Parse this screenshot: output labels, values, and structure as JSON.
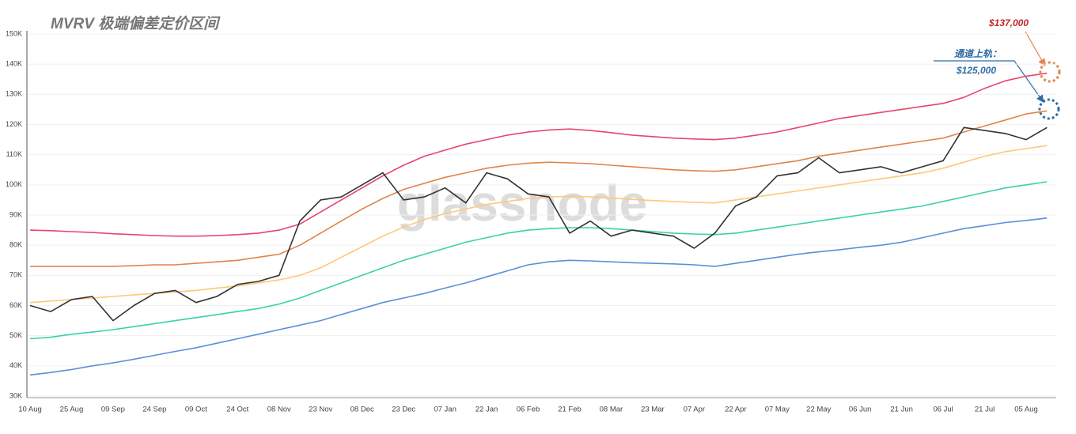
{
  "chart_data": {
    "type": "line",
    "title": "MVRV 极端偏差定价区间",
    "watermark": "glassnode",
    "annotations": [
      {
        "text": "$137,000",
        "color": "#c0272d"
      },
      {
        "text": "通道上轨：",
        "color": "#2f6da3"
      },
      {
        "text": "$125,000",
        "color": "#2f6da3"
      }
    ],
    "categories": [
      "10 Aug",
      null,
      "25 Aug",
      null,
      "09 Sep",
      null,
      "24 Sep",
      null,
      "09 Oct",
      null,
      "24 Oct",
      null,
      "08 Nov",
      null,
      "23 Nov",
      null,
      "08 Dec",
      null,
      "23 Dec",
      null,
      "07 Jan",
      null,
      "22 Jan",
      null,
      "06 Feb",
      null,
      "21 Feb",
      null,
      "08 Mar",
      null,
      "23 Mar",
      null,
      "07 Apr",
      null,
      "22 Apr",
      null,
      "07 May",
      null,
      "22 May",
      null,
      "06 Jun",
      null,
      "21 Jun",
      null,
      "06 Jul",
      null,
      "21 Jul",
      null,
      "05 Aug",
      null
    ],
    "ylim": [
      30000,
      150000
    ],
    "yticks": [
      {
        "value": 30000,
        "label": "30K"
      },
      {
        "value": 40000,
        "label": "40K"
      },
      {
        "value": 50000,
        "label": "50K"
      },
      {
        "value": 60000,
        "label": "60K"
      },
      {
        "value": 70000,
        "label": "70K"
      },
      {
        "value": 80000,
        "label": "80K"
      },
      {
        "value": 90000,
        "label": "90K"
      },
      {
        "value": 100000,
        "label": "100K"
      },
      {
        "value": 110000,
        "label": "110K"
      },
      {
        "value": 120000,
        "label": "120K"
      },
      {
        "value": 130000,
        "label": "130K"
      },
      {
        "value": 140000,
        "label": "140K"
      },
      {
        "value": 150000,
        "label": "150K"
      }
    ],
    "grid": true,
    "series": [
      {
        "color": "#e8456b",
        "values": [
          85000,
          84800,
          84500,
          84200,
          83800,
          83500,
          83200,
          83000,
          83000,
          83200,
          83500,
          84000,
          85000,
          87000,
          91000,
          95000,
          99000,
          103000,
          106500,
          109500,
          111500,
          113500,
          115000,
          116500,
          117500,
          118200,
          118500,
          118000,
          117300,
          116500,
          116000,
          115500,
          115200,
          115000,
          115500,
          116500,
          117500,
          119000,
          120500,
          122000,
          123000,
          124000,
          125000,
          126000,
          127000,
          129000,
          132000,
          134500,
          136000,
          137000
        ]
      },
      {
        "color": "#e0844a",
        "values": [
          73000,
          73000,
          73000,
          73000,
          73000,
          73200,
          73500,
          73500,
          74000,
          74500,
          75000,
          76000,
          77000,
          80000,
          84000,
          88000,
          92000,
          95500,
          98500,
          100500,
          102500,
          104000,
          105500,
          106500,
          107200,
          107500,
          107300,
          107000,
          106500,
          106000,
          105500,
          105000,
          104700,
          104500,
          105000,
          106000,
          107000,
          108000,
          109500,
          110500,
          111500,
          112500,
          113500,
          114500,
          115500,
          117500,
          119500,
          121500,
          123500,
          124500
        ]
      },
      {
        "color": "#fcc97a",
        "values": [
          61000,
          61500,
          62000,
          62500,
          63000,
          63500,
          64000,
          64500,
          65000,
          65800,
          66500,
          67500,
          68500,
          70000,
          72500,
          76000,
          79500,
          83000,
          86000,
          88500,
          90500,
          92000,
          93500,
          94500,
          95500,
          96000,
          96200,
          96000,
          95600,
          95200,
          94800,
          94500,
          94200,
          94000,
          95000,
          96000,
          97000,
          98000,
          99000,
          100000,
          101000,
          102000,
          103000,
          104000,
          105500,
          107500,
          109500,
          111000,
          112000,
          113000
        ]
      },
      {
        "color": "#3ccfae",
        "values": [
          49000,
          49500,
          50500,
          51200,
          52000,
          53000,
          54000,
          55000,
          56000,
          57000,
          58000,
          59000,
          60500,
          62500,
          65000,
          67500,
          70000,
          72500,
          75000,
          77000,
          79000,
          81000,
          82500,
          84000,
          85000,
          85500,
          85800,
          85800,
          85500,
          85000,
          84500,
          84000,
          83700,
          83500,
          84000,
          85000,
          86000,
          87000,
          88000,
          89000,
          90000,
          91000,
          92000,
          93000,
          94500,
          96000,
          97500,
          99000,
          100000,
          101000
        ]
      },
      {
        "color": "#5b8fd8",
        "values": [
          37000,
          37800,
          38800,
          40000,
          41000,
          42200,
          43500,
          44800,
          46000,
          47500,
          49000,
          50500,
          52000,
          53500,
          55000,
          57000,
          59000,
          61000,
          62500,
          64000,
          65800,
          67500,
          69500,
          71500,
          73500,
          74500,
          75000,
          74800,
          74500,
          74200,
          74000,
          73800,
          73500,
          73000,
          74000,
          75000,
          76000,
          77000,
          77800,
          78500,
          79300,
          80000,
          81000,
          82500,
          84000,
          85500,
          86500,
          87500,
          88200,
          89000
        ]
      },
      {
        "color": "#333333",
        "values": [
          60000,
          58000,
          62000,
          63000,
          55000,
          60000,
          64000,
          65000,
          61000,
          63000,
          67000,
          68000,
          70000,
          88000,
          95000,
          96000,
          100000,
          104000,
          95000,
          96000,
          99000,
          94000,
          104000,
          102000,
          97000,
          96000,
          84000,
          88000,
          83000,
          85000,
          84000,
          83000,
          79000,
          84000,
          93000,
          96000,
          103000,
          104000,
          109000,
          104000,
          105000,
          106000,
          104000,
          106000,
          108000,
          119000,
          118000,
          117000,
          115000,
          119000
        ]
      }
    ]
  }
}
